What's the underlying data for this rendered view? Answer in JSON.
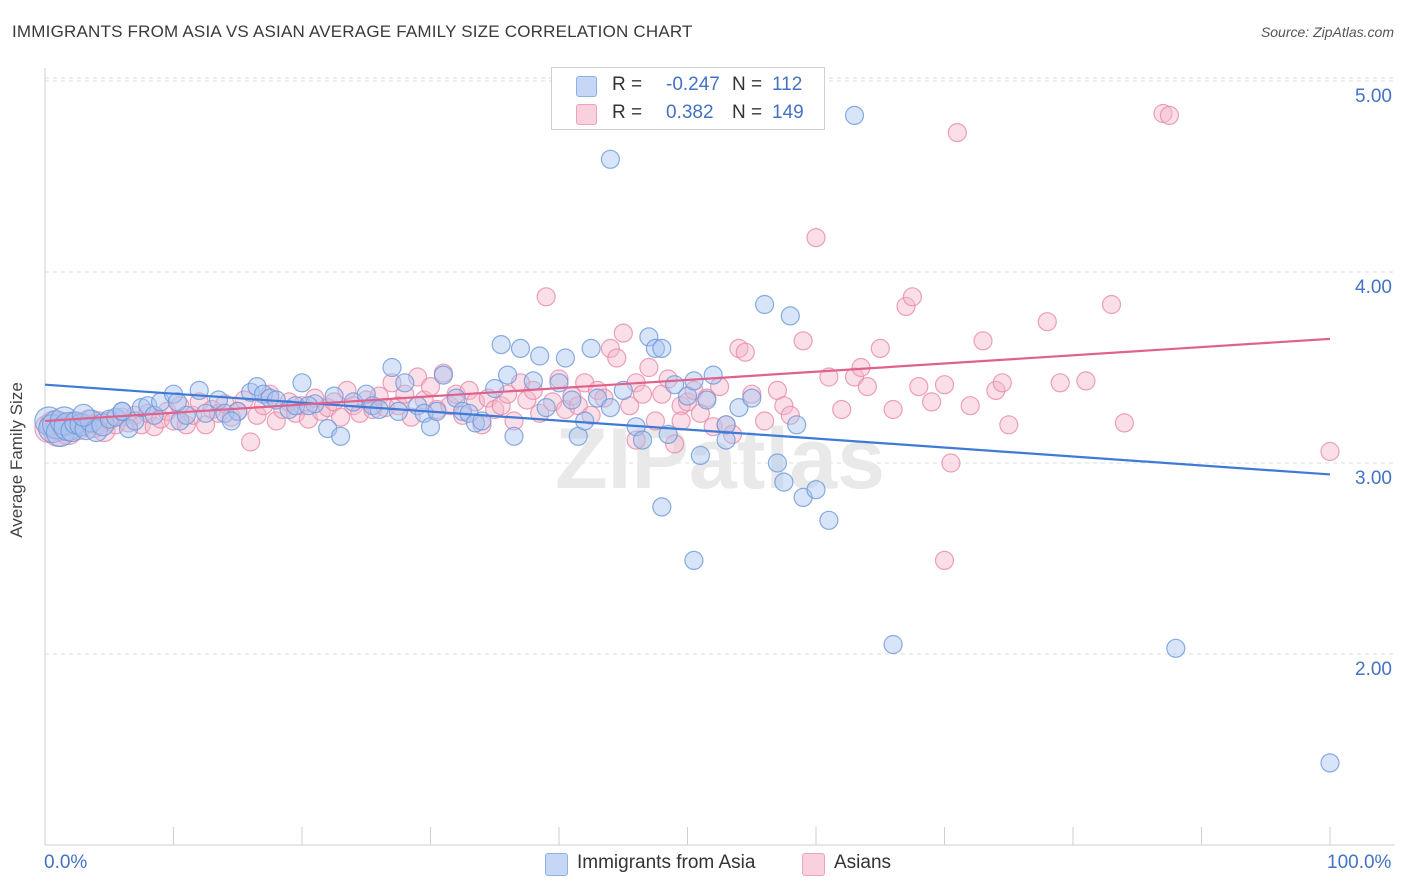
{
  "title": "IMMIGRANTS FROM ASIA VS ASIAN AVERAGE FAMILY SIZE CORRELATION CHART",
  "source": "Source: ZipAtlas.com",
  "watermark": "ZIPatlas",
  "legend": {
    "rows": [
      {
        "r_label": "R =",
        "r_value": "-0.247",
        "n_label": "N =",
        "n_value": "112",
        "color": "#a9c4ef"
      },
      {
        "r_label": "R =",
        "r_value": "0.382",
        "n_label": "N =",
        "n_value": "149",
        "color": "#f5b8cb"
      }
    ]
  },
  "bottom_legend": [
    {
      "label": "Immigrants from Asia",
      "color": "#a9c4ef"
    },
    {
      "label": "Asians",
      "color": "#f5b8cb"
    }
  ],
  "colors": {
    "blue_fill": "#a9c4ef",
    "blue_stroke": "#6b98d9",
    "blue_line": "#3f7bd6",
    "pink_fill": "#f5b8cb",
    "pink_stroke": "#e889a8",
    "pink_line": "#e0628c",
    "tick_text": "#4472c4",
    "grid": "#dcdcdc"
  },
  "chart_data": {
    "type": "scatter",
    "title": "IMMIGRANTS FROM ASIA VS ASIAN AVERAGE FAMILY SIZE CORRELATION CHART",
    "xlabel": "",
    "ylabel": "Average Family Size",
    "xlim": [
      0,
      100
    ],
    "ylim": [
      1.0,
      5.15
    ],
    "x_tick_labels": [
      "0.0%",
      "100.0%"
    ],
    "y_ticks": [
      2.0,
      3.0,
      4.0,
      5.0
    ],
    "y_tick_labels": [
      "2.00",
      "3.00",
      "4.00",
      "5.00"
    ],
    "grid": true,
    "legend_position": "top-center",
    "series": [
      {
        "name": "Immigrants from Asia",
        "r": -0.247,
        "n": 112,
        "trend": {
          "x": [
            0,
            100
          ],
          "y": [
            3.41,
            2.94
          ]
        },
        "points": [
          [
            0.3,
            3.22
          ],
          [
            0.6,
            3.18
          ],
          [
            0.9,
            3.2
          ],
          [
            1.2,
            3.16
          ],
          [
            1.5,
            3.22
          ],
          [
            1.8,
            3.19
          ],
          [
            2.1,
            3.17
          ],
          [
            2.4,
            3.21
          ],
          [
            2.8,
            3.2
          ],
          [
            3.2,
            3.18
          ],
          [
            3.6,
            3.22
          ],
          [
            4.0,
            3.17
          ],
          [
            4.5,
            3.2
          ],
          [
            5.0,
            3.23
          ],
          [
            5.5,
            3.24
          ],
          [
            6.0,
            3.27
          ],
          [
            6.5,
            3.18
          ],
          [
            7.0,
            3.22
          ],
          [
            7.5,
            3.29
          ],
          [
            8.0,
            3.3
          ],
          [
            8.5,
            3.25
          ],
          [
            9.0,
            3.32
          ],
          [
            10.0,
            3.36
          ],
          [
            10.5,
            3.22
          ],
          [
            11.0,
            3.25
          ],
          [
            12.0,
            3.38
          ],
          [
            12.5,
            3.26
          ],
          [
            13.5,
            3.33
          ],
          [
            14.0,
            3.26
          ],
          [
            15.0,
            3.27
          ],
          [
            16.0,
            3.37
          ],
          [
            16.5,
            3.4
          ],
          [
            17.0,
            3.36
          ],
          [
            17.5,
            3.34
          ],
          [
            18.0,
            3.33
          ],
          [
            19.0,
            3.28
          ],
          [
            19.5,
            3.3
          ],
          [
            20.0,
            3.42
          ],
          [
            21.0,
            3.31
          ],
          [
            22.0,
            3.18
          ],
          [
            22.5,
            3.35
          ],
          [
            23.0,
            3.14
          ],
          [
            24.0,
            3.32
          ],
          [
            25.0,
            3.36
          ],
          [
            25.5,
            3.3
          ],
          [
            26.0,
            3.28
          ],
          [
            27.0,
            3.5
          ],
          [
            27.5,
            3.27
          ],
          [
            28.0,
            3.42
          ],
          [
            29.0,
            3.3
          ],
          [
            29.5,
            3.26
          ],
          [
            30.0,
            3.19
          ],
          [
            30.5,
            3.27
          ],
          [
            31.0,
            3.46
          ],
          [
            32.0,
            3.34
          ],
          [
            32.5,
            3.27
          ],
          [
            33.0,
            3.26
          ],
          [
            33.5,
            3.21
          ],
          [
            34.0,
            3.22
          ],
          [
            35.0,
            3.39
          ],
          [
            35.5,
            3.62
          ],
          [
            36.0,
            3.46
          ],
          [
            36.5,
            3.14
          ],
          [
            37.0,
            3.6
          ],
          [
            38.0,
            3.43
          ],
          [
            38.5,
            3.56
          ],
          [
            39.0,
            3.29
          ],
          [
            40.0,
            3.42
          ],
          [
            40.5,
            3.55
          ],
          [
            41.0,
            3.33
          ],
          [
            41.5,
            3.14
          ],
          [
            42.0,
            3.22
          ],
          [
            42.5,
            3.6
          ],
          [
            43.0,
            3.34
          ],
          [
            44.0,
            3.29
          ],
          [
            45.0,
            3.38
          ],
          [
            46.0,
            3.19
          ],
          [
            46.5,
            3.12
          ],
          [
            47.0,
            3.66
          ],
          [
            47.5,
            3.6
          ],
          [
            48.0,
            3.6
          ],
          [
            48.5,
            3.15
          ],
          [
            49.0,
            3.41
          ],
          [
            50.0,
            3.35
          ],
          [
            50.5,
            3.43
          ],
          [
            51.0,
            3.04
          ],
          [
            51.5,
            3.33
          ],
          [
            52.0,
            3.46
          ],
          [
            53.0,
            3.12
          ],
          [
            54.0,
            3.29
          ],
          [
            55.0,
            3.34
          ],
          [
            56.0,
            3.83
          ],
          [
            57.0,
            3.0
          ],
          [
            57.5,
            2.9
          ],
          [
            58.0,
            3.77
          ],
          [
            58.5,
            3.2
          ],
          [
            59.0,
            2.82
          ],
          [
            60.0,
            2.86
          ],
          [
            61.0,
            2.7
          ],
          [
            63.0,
            4.82
          ],
          [
            66.0,
            2.05
          ],
          [
            48.0,
            2.77
          ],
          [
            50.5,
            2.49
          ],
          [
            53.0,
            3.2
          ],
          [
            44.0,
            4.59
          ],
          [
            88.0,
            2.03
          ],
          [
            100.0,
            1.43
          ],
          [
            6.0,
            3.27
          ],
          [
            3.0,
            3.25
          ],
          [
            10.3,
            3.32
          ],
          [
            14.5,
            3.22
          ],
          [
            20.5,
            3.3
          ]
        ]
      },
      {
        "name": "Asians",
        "r": 0.382,
        "n": 149,
        "trend": {
          "x": [
            0,
            100
          ],
          "y": [
            3.22,
            3.65
          ]
        },
        "points": [
          [
            0.3,
            3.18
          ],
          [
            0.7,
            3.2
          ],
          [
            1.0,
            3.16
          ],
          [
            1.4,
            3.19
          ],
          [
            1.8,
            3.17
          ],
          [
            2.2,
            3.21
          ],
          [
            2.6,
            3.18
          ],
          [
            3.0,
            3.2
          ],
          [
            3.4,
            3.22
          ],
          [
            3.8,
            3.19
          ],
          [
            4.2,
            3.21
          ],
          [
            4.6,
            3.17
          ],
          [
            5.0,
            3.22
          ],
          [
            5.5,
            3.2
          ],
          [
            6.0,
            3.24
          ],
          [
            6.5,
            3.21
          ],
          [
            7.0,
            3.25
          ],
          [
            7.5,
            3.2
          ],
          [
            8.0,
            3.26
          ],
          [
            8.5,
            3.19
          ],
          [
            9.0,
            3.23
          ],
          [
            9.5,
            3.27
          ],
          [
            10.0,
            3.22
          ],
          [
            10.5,
            3.3
          ],
          [
            11.0,
            3.2
          ],
          [
            11.5,
            3.25
          ],
          [
            12.0,
            3.32
          ],
          [
            12.5,
            3.2
          ],
          [
            13.0,
            3.28
          ],
          [
            13.5,
            3.26
          ],
          [
            14.0,
            3.31
          ],
          [
            14.5,
            3.24
          ],
          [
            15.0,
            3.27
          ],
          [
            15.5,
            3.33
          ],
          [
            16.0,
            3.11
          ],
          [
            16.5,
            3.25
          ],
          [
            17.0,
            3.3
          ],
          [
            17.5,
            3.36
          ],
          [
            18.0,
            3.22
          ],
          [
            18.5,
            3.28
          ],
          [
            19.0,
            3.32
          ],
          [
            19.5,
            3.26
          ],
          [
            20.0,
            3.3
          ],
          [
            20.5,
            3.23
          ],
          [
            21.0,
            3.34
          ],
          [
            21.5,
            3.27
          ],
          [
            22.0,
            3.29
          ],
          [
            22.5,
            3.32
          ],
          [
            23.0,
            3.24
          ],
          [
            23.5,
            3.38
          ],
          [
            24.0,
            3.3
          ],
          [
            24.5,
            3.26
          ],
          [
            25.0,
            3.33
          ],
          [
            25.5,
            3.28
          ],
          [
            26.0,
            3.35
          ],
          [
            26.5,
            3.29
          ],
          [
            27.0,
            3.42
          ],
          [
            27.5,
            3.3
          ],
          [
            28.0,
            3.36
          ],
          [
            28.5,
            3.24
          ],
          [
            29.0,
            3.45
          ],
          [
            29.5,
            3.33
          ],
          [
            30.0,
            3.4
          ],
          [
            30.5,
            3.28
          ],
          [
            31.0,
            3.47
          ],
          [
            31.5,
            3.3
          ],
          [
            32.0,
            3.36
          ],
          [
            32.5,
            3.25
          ],
          [
            33.0,
            3.38
          ],
          [
            33.5,
            3.32
          ],
          [
            34.0,
            3.2
          ],
          [
            34.5,
            3.34
          ],
          [
            35.0,
            3.28
          ],
          [
            35.5,
            3.3
          ],
          [
            36.0,
            3.36
          ],
          [
            36.5,
            3.22
          ],
          [
            37.0,
            3.42
          ],
          [
            37.5,
            3.33
          ],
          [
            38.0,
            3.38
          ],
          [
            38.5,
            3.26
          ],
          [
            39.0,
            3.87
          ],
          [
            39.5,
            3.32
          ],
          [
            40.0,
            3.44
          ],
          [
            40.5,
            3.28
          ],
          [
            41.0,
            3.35
          ],
          [
            41.5,
            3.3
          ],
          [
            42.0,
            3.42
          ],
          [
            42.5,
            3.25
          ],
          [
            43.0,
            3.38
          ],
          [
            43.5,
            3.34
          ],
          [
            44.0,
            3.6
          ],
          [
            44.5,
            3.55
          ],
          [
            45.0,
            3.68
          ],
          [
            45.5,
            3.3
          ],
          [
            46.0,
            3.42
          ],
          [
            46.5,
            3.36
          ],
          [
            47.0,
            3.5
          ],
          [
            47.5,
            3.22
          ],
          [
            48.0,
            3.36
          ],
          [
            48.5,
            3.44
          ],
          [
            49.0,
            3.1
          ],
          [
            49.5,
            3.3
          ],
          [
            50.0,
            3.32
          ],
          [
            50.5,
            3.38
          ],
          [
            51.0,
            3.26
          ],
          [
            51.5,
            3.34
          ],
          [
            52.0,
            3.19
          ],
          [
            52.5,
            3.4
          ],
          [
            53.0,
            3.2
          ],
          [
            54.0,
            3.6
          ],
          [
            54.5,
            3.58
          ],
          [
            55.0,
            3.36
          ],
          [
            56.0,
            3.22
          ],
          [
            57.0,
            3.38
          ],
          [
            57.5,
            3.3
          ],
          [
            58.0,
            3.25
          ],
          [
            59.0,
            3.64
          ],
          [
            60.0,
            4.18
          ],
          [
            61.0,
            3.45
          ],
          [
            62.0,
            3.28
          ],
          [
            63.0,
            3.45
          ],
          [
            63.5,
            3.5
          ],
          [
            64.0,
            3.4
          ],
          [
            65.0,
            3.6
          ],
          [
            66.0,
            3.28
          ],
          [
            67.0,
            3.82
          ],
          [
            67.5,
            3.87
          ],
          [
            68.0,
            3.4
          ],
          [
            69.0,
            3.32
          ],
          [
            70.0,
            3.41
          ],
          [
            70.5,
            3.0
          ],
          [
            71.0,
            4.73
          ],
          [
            72.0,
            3.3
          ],
          [
            73.0,
            3.64
          ],
          [
            74.0,
            3.38
          ],
          [
            74.5,
            3.42
          ],
          [
            75.0,
            3.2
          ],
          [
            78.0,
            3.74
          ],
          [
            79.0,
            3.42
          ],
          [
            81.0,
            3.43
          ],
          [
            83.0,
            3.83
          ],
          [
            84.0,
            3.21
          ],
          [
            87.0,
            4.83
          ],
          [
            87.5,
            4.82
          ],
          [
            100.0,
            3.06
          ],
          [
            70.0,
            2.49
          ],
          [
            46.0,
            3.12
          ],
          [
            49.5,
            3.22
          ],
          [
            53.5,
            3.15
          ]
        ]
      }
    ]
  }
}
